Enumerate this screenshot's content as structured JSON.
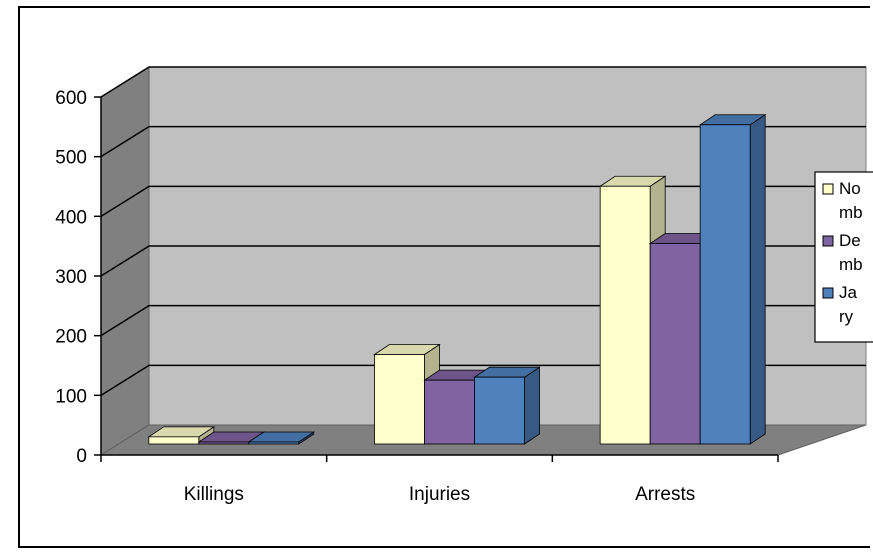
{
  "chart_data": {
    "type": "bar",
    "categories": [
      "Killings",
      "Injuries",
      "Arrests"
    ],
    "series": [
      {
        "name": "November",
        "legend_text": [
          "No",
          "mb"
        ],
        "color": "#FFFFCC",
        "values": [
          12,
          150,
          432
        ]
      },
      {
        "name": "December",
        "legend_text": [
          "De",
          "mb"
        ],
        "color": "#8064A2",
        "values": [
          3,
          107,
          336
        ]
      },
      {
        "name": "January",
        "legend_text": [
          "Ja",
          "ry"
        ],
        "color": "#4F81BD",
        "values": [
          2,
          112,
          535
        ]
      }
    ],
    "ylim": [
      0,
      600
    ],
    "yticks": [
      0,
      100,
      200,
      300,
      400,
      500,
      600
    ],
    "grid": true,
    "legend_position": "right",
    "wall_color": "#C0C0C0",
    "title": "",
    "xlabel": "",
    "ylabel": ""
  }
}
